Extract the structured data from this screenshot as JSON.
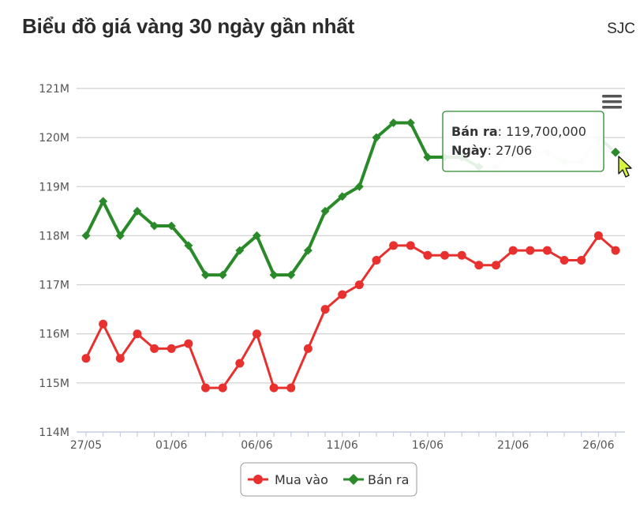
{
  "header": {
    "title": "Biểu đồ giá vàng 30 ngày gần nhất",
    "source": "SJC"
  },
  "chart_data": {
    "type": "line",
    "title": "Biểu đồ giá vàng 30 ngày gần nhất",
    "xlabel": "",
    "ylabel": "",
    "ylim": [
      114000000,
      121000000
    ],
    "ytick_labels": [
      "114M",
      "115M",
      "116M",
      "117M",
      "118M",
      "119M",
      "120M",
      "121M"
    ],
    "ytick_values": [
      114000000,
      115000000,
      116000000,
      117000000,
      118000000,
      119000000,
      120000000,
      121000000
    ],
    "x": [
      "27/05",
      "28/05",
      "29/05",
      "30/05",
      "31/05",
      "01/06",
      "02/06",
      "03/06",
      "04/06",
      "05/06",
      "06/06",
      "07/06",
      "08/06",
      "09/06",
      "10/06",
      "11/06",
      "12/06",
      "13/06",
      "14/06",
      "15/06",
      "16/06",
      "17/06",
      "18/06",
      "19/06",
      "20/06",
      "21/06",
      "22/06",
      "23/06",
      "24/06",
      "25/06",
      "26/06",
      "27/06"
    ],
    "xtick_labels": [
      "27/05",
      "01/06",
      "06/06",
      "11/06",
      "16/06",
      "21/06",
      "26/06"
    ],
    "xtick_indices": [
      0,
      5,
      10,
      15,
      20,
      25,
      30
    ],
    "grid": true,
    "legend_position": "bottom",
    "series": [
      {
        "name": "Mua vào",
        "color": "#e8302f",
        "marker": "circle",
        "values": [
          115500000,
          116200000,
          115500000,
          116000000,
          115700000,
          115700000,
          115800000,
          114900000,
          114900000,
          115400000,
          116000000,
          114900000,
          114900000,
          115700000,
          116500000,
          116800000,
          117000000,
          117500000,
          117800000,
          117800000,
          117600000,
          117600000,
          117600000,
          117400000,
          117400000,
          117700000,
          117700000,
          117700000,
          117500000,
          117500000,
          118000000,
          117700000
        ]
      },
      {
        "name": "Bán ra",
        "color": "#2a8a2a",
        "marker": "diamond",
        "values": [
          118000000,
          118700000,
          118000000,
          118500000,
          118200000,
          118200000,
          117800000,
          117200000,
          117200000,
          117700000,
          118000000,
          117200000,
          117200000,
          117700000,
          118500000,
          118800000,
          119000000,
          120000000,
          120300000,
          120300000,
          119600000,
          119600000,
          119600000,
          119400000,
          119400000,
          119700000,
          119700000,
          119700000,
          119500000,
          119500000,
          120000000,
          119700000
        ]
      }
    ],
    "tooltip": {
      "series_label": "Bán ra",
      "value_text": "119,700,000",
      "date_label": "Ngày",
      "date_value": "27/06",
      "index": 31
    }
  },
  "menu": {
    "icon": "hamburger-menu-icon"
  }
}
